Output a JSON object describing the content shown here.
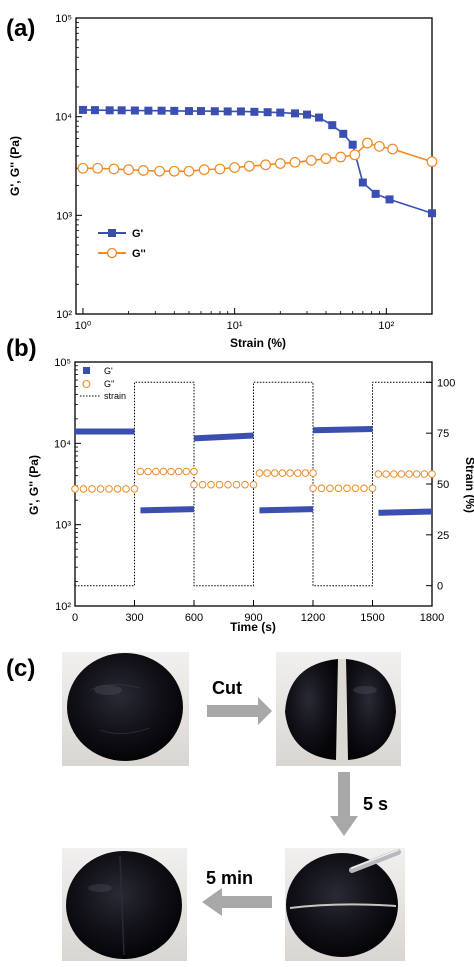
{
  "panel_labels": {
    "a": "(a)",
    "b": "(b)",
    "c": "(c)"
  },
  "chart_data": [
    {
      "type": "line",
      "panel": "(a)",
      "xlabel": "Strain (%)",
      "ylabel": "G', G'' (Pa)",
      "xscale": "log",
      "yscale": "log",
      "xlim": [
        0.9,
        200
      ],
      "ylim": [
        100,
        100000
      ],
      "x_ticks": [
        1,
        10,
        100
      ],
      "x_tick_labels": [
        "10⁰",
        "10¹",
        "10²"
      ],
      "y_ticks": [
        100,
        1000,
        10000,
        100000
      ],
      "y_tick_labels": [
        "10²",
        "10³",
        "10⁴",
        "10⁵"
      ],
      "grid": false,
      "legend_position": "lower-left",
      "series": [
        {
          "name": "G'",
          "color": "#3a4fb0",
          "marker": "filled-square",
          "x": [
            1,
            1.2,
            1.5,
            1.8,
            2.2,
            2.7,
            3.3,
            4,
            5,
            6,
            7.4,
            9,
            11,
            13.5,
            16.5,
            20,
            25,
            30,
            36,
            44,
            52,
            60,
            70,
            85,
            105,
            200
          ],
          "y": [
            11700,
            11650,
            11600,
            11600,
            11550,
            11500,
            11500,
            11450,
            11400,
            11400,
            11350,
            11300,
            11300,
            11200,
            11100,
            11000,
            10800,
            10500,
            9800,
            8200,
            6700,
            5200,
            2150,
            1650,
            1450,
            1050
          ]
        },
        {
          "name": "G''",
          "color": "#f08a24",
          "marker": "open-circle",
          "x": [
            1,
            1.25,
            1.6,
            2,
            2.5,
            3.2,
            4,
            5,
            6.3,
            8,
            10,
            12.5,
            16,
            20,
            25,
            32,
            40,
            50,
            62,
            75,
            90,
            110,
            200
          ],
          "y": [
            3000,
            3000,
            2950,
            2900,
            2850,
            2800,
            2800,
            2800,
            2900,
            2950,
            3050,
            3150,
            3250,
            3350,
            3450,
            3600,
            3750,
            3900,
            4100,
            5400,
            5000,
            4700,
            3500
          ]
        }
      ]
    },
    {
      "type": "scatter",
      "panel": "(b)",
      "xlabel": "Time (s)",
      "ylabel": "G', G'' (Pa)",
      "y2label": "Strain (%)",
      "xlim": [
        0,
        1800
      ],
      "x_ticks": [
        0,
        300,
        600,
        900,
        1200,
        1500,
        1800
      ],
      "ylim": [
        100,
        100000
      ],
      "yscale": "log",
      "y_ticks": [
        100,
        1000,
        10000,
        100000
      ],
      "y_tick_labels": [
        "10²",
        "10³",
        "10⁴",
        "10⁵"
      ],
      "y2lim": [
        -10,
        110
      ],
      "y2_ticks": [
        0,
        25,
        50,
        75,
        100
      ],
      "grid": false,
      "legend_position": "top-left",
      "series": [
        {
          "name": "G'",
          "color": "#3a4fb0",
          "marker": "filled-square",
          "segments": [
            {
              "t_start": 0,
              "t_end": 300,
              "y_start": 14000,
              "y_end": 14000
            },
            {
              "t_start": 330,
              "t_end": 600,
              "y_start": 1500,
              "y_end": 1550
            },
            {
              "t_start": 600,
              "t_end": 900,
              "y_start": 11500,
              "y_end": 12500
            },
            {
              "t_start": 930,
              "t_end": 1200,
              "y_start": 1500,
              "y_end": 1550
            },
            {
              "t_start": 1200,
              "t_end": 1500,
              "y_start": 14500,
              "y_end": 15000
            },
            {
              "t_start": 1530,
              "t_end": 1800,
              "y_start": 1400,
              "y_end": 1450
            }
          ]
        },
        {
          "name": "G''",
          "color": "#f08a24",
          "marker": "open-circle",
          "segments": [
            {
              "t_start": 0,
              "t_end": 300,
              "y_start": 2750,
              "y_end": 2750
            },
            {
              "t_start": 330,
              "t_end": 600,
              "y_start": 4500,
              "y_end": 4500
            },
            {
              "t_start": 600,
              "t_end": 900,
              "y_start": 3100,
              "y_end": 3100
            },
            {
              "t_start": 930,
              "t_end": 1200,
              "y_start": 4300,
              "y_end": 4300
            },
            {
              "t_start": 1200,
              "t_end": 1500,
              "y_start": 2800,
              "y_end": 2800
            },
            {
              "t_start": 1530,
              "t_end": 1800,
              "y_start": 4200,
              "y_end": 4200
            }
          ]
        },
        {
          "name": "strain",
          "color": "#000000",
          "line_style": "dotted",
          "axis": "right",
          "x": [
            0,
            300,
            300,
            600,
            600,
            900,
            900,
            1200,
            1200,
            1500,
            1500,
            1800
          ],
          "y": [
            0,
            0,
            100,
            100,
            0,
            0,
            100,
            100,
            0,
            0,
            100,
            100
          ]
        }
      ]
    }
  ],
  "photo_panel": {
    "arrow_labels": {
      "cut": "Cut",
      "five_s": "5 s",
      "five_min": "5 min"
    },
    "colors": {
      "arrow": "#a8a8a8",
      "sample": "#111118",
      "background": "#e8e6e4"
    }
  }
}
